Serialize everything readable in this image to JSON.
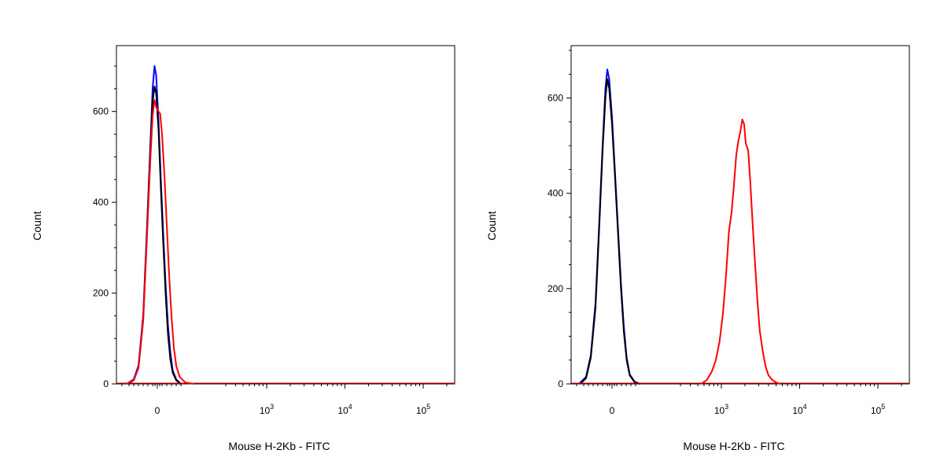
{
  "chart_data": [
    {
      "type": "histogram",
      "xlabel": "Mouse H-2Kb - FITC",
      "ylabel": "Count",
      "x_scale": "biexponential",
      "y_ticks": [
        {
          "value": 0,
          "label": "0"
        },
        {
          "value": 200,
          "label": "200"
        },
        {
          "value": 400,
          "label": "400"
        },
        {
          "value": 600,
          "label": "600"
        }
      ],
      "ylim": [
        0,
        745
      ],
      "x_ticks": [
        {
          "value": 0,
          "label": "0",
          "exp": ""
        },
        {
          "value": 1000,
          "label": "10",
          "exp": "3"
        },
        {
          "value": 10000,
          "label": "10",
          "exp": "4"
        },
        {
          "value": 100000,
          "label": "10",
          "exp": "5"
        }
      ],
      "series": [
        {
          "color": "#0000ff",
          "points": [
            [
              -130,
              0
            ],
            [
              -100,
              10
            ],
            [
              -80,
              40
            ],
            [
              -60,
              150
            ],
            [
              -45,
              330
            ],
            [
              -30,
              520
            ],
            [
              -20,
              650
            ],
            [
              -12,
              700
            ],
            [
              -5,
              680
            ],
            [
              5,
              580
            ],
            [
              15,
              450
            ],
            [
              25,
              330
            ],
            [
              35,
              220
            ],
            [
              45,
              130
            ],
            [
              55,
              70
            ],
            [
              65,
              30
            ],
            [
              80,
              10
            ],
            [
              100,
              0
            ]
          ]
        },
        {
          "color": "#000000",
          "points": [
            [
              -125,
              0
            ],
            [
              -100,
              8
            ],
            [
              -80,
              35
            ],
            [
              -60,
              140
            ],
            [
              -45,
              320
            ],
            [
              -30,
              510
            ],
            [
              -20,
              620
            ],
            [
              -12,
              655
            ],
            [
              -5,
              640
            ],
            [
              5,
              560
            ],
            [
              15,
              430
            ],
            [
              25,
              310
            ],
            [
              35,
              200
            ],
            [
              45,
              110
            ],
            [
              55,
              55
            ],
            [
              65,
              25
            ],
            [
              80,
              8
            ],
            [
              100,
              0
            ]
          ]
        },
        {
          "color": "#ff0000",
          "points": [
            [
              -130,
              0
            ],
            [
              -100,
              8
            ],
            [
              -80,
              35
            ],
            [
              -60,
              140
            ],
            [
              -45,
              310
            ],
            [
              -30,
              490
            ],
            [
              -20,
              590
            ],
            [
              -12,
              625
            ],
            [
              -5,
              610
            ],
            [
              5,
              600
            ],
            [
              12,
              595
            ],
            [
              20,
              550
            ],
            [
              30,
              460
            ],
            [
              40,
              350
            ],
            [
              50,
              240
            ],
            [
              60,
              150
            ],
            [
              70,
              80
            ],
            [
              80,
              40
            ],
            [
              95,
              15
            ],
            [
              120,
              3
            ],
            [
              160,
              0
            ]
          ]
        }
      ]
    },
    {
      "type": "histogram",
      "xlabel": "Mouse H-2Kb - FITC",
      "ylabel": "Count",
      "x_scale": "biexponential",
      "y_ticks": [
        {
          "value": 0,
          "label": "0"
        },
        {
          "value": 200,
          "label": "200"
        },
        {
          "value": 400,
          "label": "400"
        },
        {
          "value": 600,
          "label": "600"
        }
      ],
      "ylim": [
        0,
        710
      ],
      "x_ticks": [
        {
          "value": 0,
          "label": "0",
          "exp": ""
        },
        {
          "value": 1000,
          "label": "10",
          "exp": "3"
        },
        {
          "value": 10000,
          "label": "10",
          "exp": "4"
        },
        {
          "value": 100000,
          "label": "10",
          "exp": "5"
        }
      ],
      "series": [
        {
          "color": "#0000ff",
          "points": [
            [
              -140,
              0
            ],
            [
              -110,
              15
            ],
            [
              -90,
              60
            ],
            [
              -70,
              170
            ],
            [
              -55,
              330
            ],
            [
              -40,
              500
            ],
            [
              -28,
              620
            ],
            [
              -20,
              660
            ],
            [
              -12,
              640
            ],
            [
              0,
              560
            ],
            [
              12,
              450
            ],
            [
              25,
              330
            ],
            [
              38,
              210
            ],
            [
              50,
              120
            ],
            [
              62,
              55
            ],
            [
              75,
              20
            ],
            [
              95,
              5
            ],
            [
              120,
              0
            ]
          ]
        },
        {
          "color": "#000000",
          "points": [
            [
              -135,
              0
            ],
            [
              -110,
              12
            ],
            [
              -90,
              55
            ],
            [
              -70,
              160
            ],
            [
              -55,
              320
            ],
            [
              -40,
              490
            ],
            [
              -28,
              600
            ],
            [
              -20,
              640
            ],
            [
              -12,
              620
            ],
            [
              0,
              545
            ],
            [
              12,
              440
            ],
            [
              25,
              320
            ],
            [
              38,
              200
            ],
            [
              50,
              110
            ],
            [
              62,
              50
            ],
            [
              75,
              18
            ],
            [
              95,
              4
            ],
            [
              120,
              0
            ]
          ]
        },
        {
          "color": "#ff0000",
          "points": [
            [
              550,
              0
            ],
            [
              650,
              8
            ],
            [
              750,
              25
            ],
            [
              850,
              50
            ],
            [
              950,
              90
            ],
            [
              1050,
              150
            ],
            [
              1150,
              230
            ],
            [
              1250,
              320
            ],
            [
              1350,
              360
            ],
            [
              1450,
              420
            ],
            [
              1550,
              480
            ],
            [
              1650,
              510
            ],
            [
              1750,
              530
            ],
            [
              1850,
              555
            ],
            [
              1950,
              545
            ],
            [
              2050,
              505
            ],
            [
              2200,
              490
            ],
            [
              2350,
              420
            ],
            [
              2500,
              340
            ],
            [
              2700,
              250
            ],
            [
              2900,
              170
            ],
            [
              3100,
              110
            ],
            [
              3400,
              65
            ],
            [
              3700,
              35
            ],
            [
              4000,
              18
            ],
            [
              4500,
              8
            ],
            [
              5000,
              3
            ],
            [
              5600,
              0
            ]
          ]
        }
      ]
    }
  ]
}
